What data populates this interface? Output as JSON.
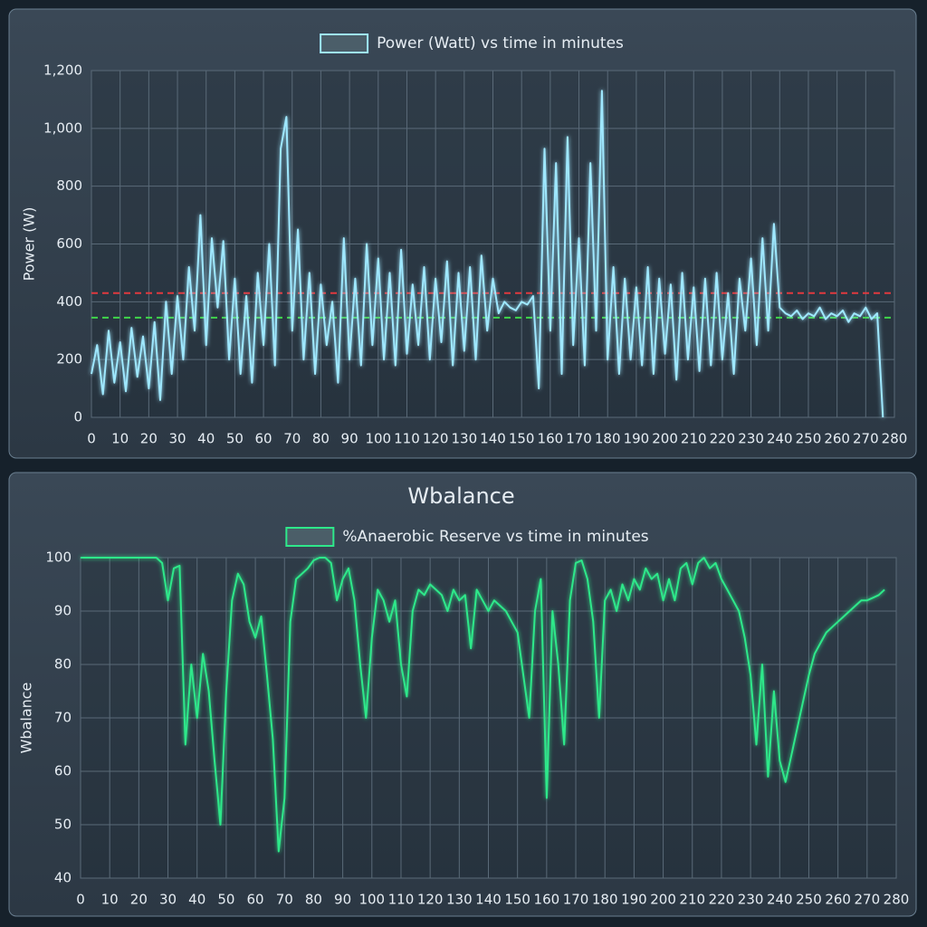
{
  "chart_data": [
    {
      "type": "line",
      "ylabel": "Power (W)",
      "x": [
        0,
        2,
        4,
        6,
        8,
        10,
        12,
        14,
        16,
        18,
        20,
        22,
        24,
        26,
        28,
        30,
        32,
        34,
        36,
        38,
        40,
        42,
        44,
        46,
        48,
        50,
        52,
        54,
        56,
        58,
        60,
        62,
        64,
        66,
        68,
        70,
        72,
        74,
        76,
        78,
        80,
        82,
        84,
        86,
        88,
        90,
        92,
        94,
        96,
        98,
        100,
        102,
        104,
        106,
        108,
        110,
        112,
        114,
        116,
        118,
        120,
        122,
        124,
        126,
        128,
        130,
        132,
        134,
        136,
        138,
        140,
        142,
        144,
        146,
        148,
        150,
        152,
        154,
        156,
        158,
        160,
        162,
        164,
        166,
        168,
        170,
        172,
        174,
        176,
        178,
        180,
        182,
        184,
        186,
        188,
        190,
        192,
        194,
        196,
        198,
        200,
        202,
        204,
        206,
        208,
        210,
        212,
        214,
        216,
        218,
        220,
        222,
        224,
        226,
        228,
        230,
        232,
        234,
        236,
        238,
        240,
        242,
        244,
        246,
        248,
        250,
        252,
        254,
        256,
        258,
        260,
        262,
        264,
        266,
        268,
        270,
        272,
        274,
        276
      ],
      "series": [
        {
          "name": "Power (Watt) vs time in minutes",
          "color": "#9fe8ff",
          "values": [
            150,
            250,
            80,
            300,
            120,
            260,
            90,
            310,
            140,
            280,
            100,
            330,
            60,
            400,
            150,
            420,
            200,
            520,
            300,
            700,
            250,
            620,
            380,
            610,
            200,
            480,
            150,
            420,
            120,
            500,
            250,
            600,
            180,
            930,
            1040,
            300,
            650,
            200,
            500,
            150,
            460,
            250,
            400,
            120,
            620,
            200,
            480,
            180,
            600,
            250,
            550,
            200,
            500,
            180,
            580,
            220,
            460,
            250,
            520,
            200,
            480,
            260,
            540,
            180,
            500,
            230,
            520,
            200,
            560,
            300,
            480,
            360,
            400,
            380,
            370,
            400,
            390,
            420,
            100,
            930,
            300,
            880,
            150,
            970,
            250,
            620,
            180,
            880,
            300,
            1130,
            200,
            520,
            150,
            480,
            200,
            450,
            180,
            520,
            150,
            480,
            220,
            460,
            130,
            500,
            200,
            450,
            160,
            480,
            180,
            500,
            200,
            430,
            150,
            480,
            300,
            550,
            250,
            620,
            300,
            670,
            380,
            360,
            350,
            370,
            340,
            360,
            350,
            380,
            340,
            360,
            350,
            370,
            330,
            360,
            350,
            380,
            340,
            360,
            0
          ]
        }
      ],
      "hlines": [
        {
          "value": 430,
          "color": "#e0393e"
        },
        {
          "value": 345,
          "color": "#3fd64a"
        }
      ],
      "xlim": [
        0,
        280
      ],
      "xticks": [
        0,
        10,
        20,
        30,
        40,
        50,
        60,
        70,
        80,
        90,
        100,
        110,
        120,
        130,
        140,
        150,
        160,
        170,
        180,
        190,
        200,
        210,
        220,
        230,
        240,
        250,
        260,
        270,
        280
      ],
      "ylim": [
        0,
        1200
      ],
      "yticks": [
        0,
        200,
        400,
        600,
        800,
        {
          "value": 1000,
          "label": "1,000"
        },
        {
          "value": 1200,
          "label": "1,200"
        }
      ],
      "grid": true,
      "legend": "top"
    },
    {
      "type": "line",
      "title": "Wbalance",
      "ylabel": "Wbalance",
      "x": [
        0,
        2,
        4,
        6,
        8,
        10,
        12,
        14,
        16,
        18,
        20,
        22,
        24,
        26,
        28,
        30,
        32,
        34,
        36,
        38,
        40,
        42,
        44,
        46,
        48,
        50,
        52,
        54,
        56,
        58,
        60,
        62,
        64,
        66,
        68,
        70,
        72,
        74,
        76,
        78,
        80,
        82,
        84,
        86,
        88,
        90,
        92,
        94,
        96,
        98,
        100,
        102,
        104,
        106,
        108,
        110,
        112,
        114,
        116,
        118,
        120,
        122,
        124,
        126,
        128,
        130,
        132,
        134,
        136,
        138,
        140,
        142,
        144,
        146,
        148,
        150,
        152,
        154,
        156,
        158,
        160,
        162,
        164,
        166,
        168,
        170,
        172,
        174,
        176,
        178,
        180,
        182,
        184,
        186,
        188,
        190,
        192,
        194,
        196,
        198,
        200,
        202,
        204,
        206,
        208,
        210,
        212,
        214,
        216,
        218,
        220,
        222,
        224,
        226,
        228,
        230,
        232,
        234,
        236,
        238,
        240,
        242,
        244,
        246,
        248,
        250,
        252,
        254,
        256,
        258,
        260,
        262,
        264,
        266,
        268,
        270,
        272,
        274,
        276
      ],
      "series": [
        {
          "name": "%Anaerobic Reserve vs time in minutes",
          "color": "#2ee88a",
          "values": [
            100,
            100,
            100,
            100,
            100,
            100,
            100,
            100,
            100,
            100,
            100,
            100,
            100,
            100,
            99,
            92,
            98,
            98.5,
            65,
            80,
            70,
            82,
            75,
            62,
            50,
            75,
            92,
            97,
            95,
            88,
            85,
            89,
            78,
            66,
            45,
            55,
            88,
            96,
            97,
            98,
            99.5,
            100,
            100,
            99,
            92,
            96,
            98,
            92,
            80,
            70,
            85,
            94,
            92,
            88,
            92,
            80,
            74,
            90,
            94,
            93,
            95,
            94,
            93,
            90,
            94,
            92,
            93,
            83,
            94,
            92,
            90,
            92,
            91,
            90,
            88,
            86,
            78,
            70,
            90,
            96,
            55,
            90,
            80,
            65,
            92,
            99,
            99.5,
            96,
            88,
            70,
            92,
            94,
            90,
            95,
            92,
            96,
            94,
            98,
            96,
            97,
            92,
            96,
            92,
            98,
            99,
            95,
            99,
            100,
            98,
            99,
            96,
            94,
            92,
            90,
            85,
            78,
            65,
            80,
            59,
            75,
            62,
            58,
            63,
            68,
            73,
            78,
            82,
            84,
            86,
            87,
            88,
            89,
            90,
            91,
            92,
            92,
            92.5,
            93,
            94
          ]
        }
      ],
      "xlim": [
        0,
        280
      ],
      "xticks": [
        0,
        10,
        20,
        30,
        40,
        50,
        60,
        70,
        80,
        90,
        100,
        110,
        120,
        130,
        140,
        150,
        160,
        170,
        180,
        190,
        200,
        210,
        220,
        230,
        240,
        250,
        260,
        270,
        280
      ],
      "ylim": [
        40,
        100
      ],
      "yticks": [
        40,
        50,
        60,
        70,
        80,
        90,
        100
      ],
      "grid": true,
      "legend": "top"
    }
  ]
}
